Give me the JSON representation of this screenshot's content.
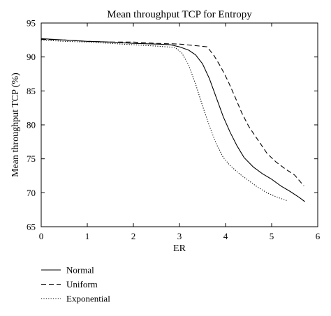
{
  "chart_data": {
    "type": "line",
    "title": "Mean throughput TCP for Entropy",
    "xlabel": "ER",
    "ylabel": "Mean throughput TCP (%)",
    "xlim": [
      0,
      6
    ],
    "ylim": [
      65,
      95
    ],
    "xticks": [
      0,
      1,
      2,
      3,
      4,
      5,
      6
    ],
    "yticks": [
      65,
      70,
      75,
      80,
      85,
      90,
      95
    ],
    "grid": false,
    "legend_position": "below-left",
    "series": [
      {
        "name": "Normal",
        "style": "solid",
        "color": "#000000",
        "x": [
          0,
          0.5,
          1,
          1.5,
          2,
          2.5,
          2.8,
          3.0,
          3.2,
          3.35,
          3.5,
          3.65,
          3.8,
          3.95,
          4.1,
          4.25,
          4.4,
          4.6,
          4.8,
          5.0,
          5.2,
          5.4,
          5.6,
          5.72
        ],
        "y": [
          92.7,
          92.5,
          92.3,
          92.2,
          92.0,
          91.9,
          91.8,
          91.5,
          91.0,
          90.3,
          89.0,
          86.8,
          84.0,
          81.2,
          78.9,
          76.9,
          75.2,
          73.8,
          72.8,
          72.0,
          71.0,
          70.2,
          69.3,
          68.7
        ]
      },
      {
        "name": "Uniform",
        "style": "dashed",
        "color": "#000000",
        "x": [
          0,
          0.5,
          1,
          1.5,
          2,
          2.5,
          3.0,
          3.3,
          3.6,
          3.75,
          3.9,
          4.05,
          4.2,
          4.35,
          4.5,
          4.7,
          4.9,
          5.1,
          5.3,
          5.5,
          5.7
        ],
        "y": [
          92.6,
          92.5,
          92.3,
          92.2,
          92.2,
          92.0,
          91.9,
          91.7,
          91.5,
          90.2,
          88.5,
          86.5,
          84.2,
          81.8,
          79.8,
          77.8,
          75.8,
          74.5,
          73.5,
          72.6,
          71.0
        ]
      },
      {
        "name": "Exponential",
        "style": "dotted",
        "color": "#000000",
        "x": [
          0,
          0.5,
          1,
          1.5,
          2,
          2.5,
          2.9,
          3.05,
          3.2,
          3.35,
          3.5,
          3.65,
          3.8,
          3.95,
          4.1,
          4.3,
          4.5,
          4.7,
          4.9,
          5.1,
          5.35
        ],
        "y": [
          92.5,
          92.3,
          92.2,
          92.0,
          91.8,
          91.6,
          91.4,
          90.6,
          88.8,
          86.0,
          82.8,
          79.8,
          77.2,
          75.2,
          74.0,
          72.8,
          71.8,
          70.8,
          70.0,
          69.4,
          68.8
        ]
      }
    ]
  }
}
